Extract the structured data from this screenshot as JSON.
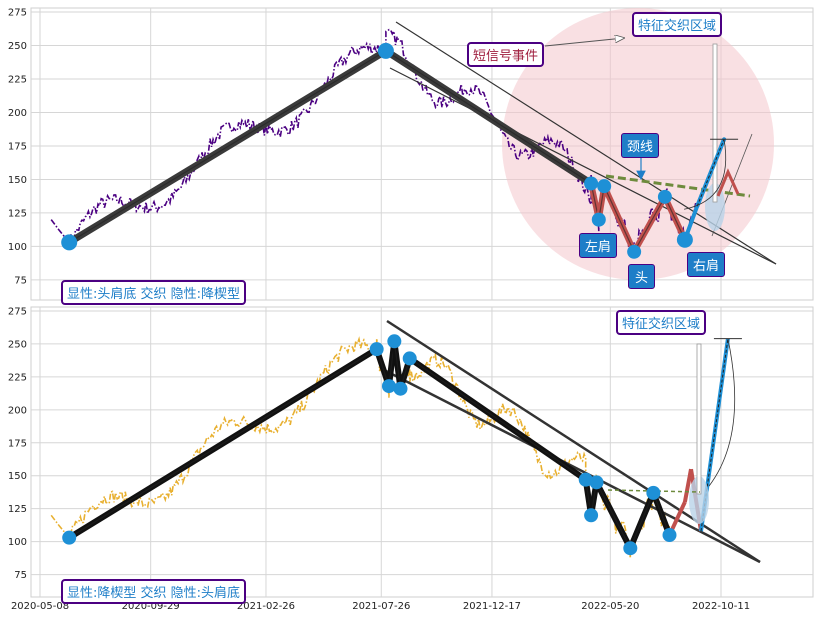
{
  "colors": {
    "price_top": "#4b0082",
    "price_bottom": "#e8b030",
    "marker": "#1e90d6",
    "trend": "#333333",
    "pattern_red": "#c0504d",
    "neckline": "#6e8b3d",
    "zone": "#f4c6cc",
    "label_border": "#4b0082",
    "label_text": "#1e7ec8",
    "event_text": "#a02040"
  },
  "chart_data": [
    {
      "type": "line",
      "panel": "top",
      "x_ticks": [
        "2020-05-08",
        "2020-09-29",
        "2021-02-26",
        "2021-07-26",
        "2021-12-17",
        "2022-05-20",
        "2022-10-11"
      ],
      "y_ticks": [
        75,
        100,
        125,
        150,
        175,
        200,
        225,
        250,
        275
      ],
      "ylim": [
        60,
        278
      ],
      "grid": true,
      "zigzag": [
        {
          "x": "2020-06-15",
          "y": 103
        },
        {
          "x": "2021-08-01",
          "y": 246
        },
        {
          "x": "2022-04-25",
          "y": 147
        },
        {
          "x": "2022-05-05",
          "y": 120
        },
        {
          "x": "2022-05-12",
          "y": 145
        },
        {
          "x": "2022-06-20",
          "y": 96
        },
        {
          "x": "2022-07-30",
          "y": 137
        },
        {
          "x": "2022-08-25",
          "y": 105
        },
        {
          "x": "2022-09-10",
          "y": 130
        },
        {
          "x": "2022-10-15",
          "y": 180
        }
      ],
      "annotations": {
        "left_shoulder": "左肩",
        "head": "头",
        "right_shoulder": "右肩",
        "neckline": "颈线",
        "short_signal": "短信号事件",
        "feature_zone": "特征交织区域"
      },
      "legend": "显性:头肩底 交织 隐性:降楔型"
    },
    {
      "type": "line",
      "panel": "bottom",
      "x_ticks": [
        "2020-05-08",
        "2020-09-29",
        "2021-02-26",
        "2021-07-26",
        "2021-12-17",
        "2022-05-20",
        "2022-10-11"
      ],
      "y_ticks": [
        75,
        100,
        125,
        150,
        175,
        200,
        225,
        250,
        275
      ],
      "ylim": [
        58,
        278
      ],
      "grid": true,
      "zigzag": [
        {
          "x": "2020-06-15",
          "y": 103
        },
        {
          "x": "2021-07-20",
          "y": 246
        },
        {
          "x": "2021-08-05",
          "y": 218
        },
        {
          "x": "2021-08-12",
          "y": 252
        },
        {
          "x": "2021-08-20",
          "y": 216
        },
        {
          "x": "2021-09-01",
          "y": 239
        },
        {
          "x": "2022-04-18",
          "y": 147
        },
        {
          "x": "2022-04-25",
          "y": 120
        },
        {
          "x": "2022-05-02",
          "y": 145
        },
        {
          "x": "2022-06-15",
          "y": 95
        },
        {
          "x": "2022-07-15",
          "y": 137
        },
        {
          "x": "2022-08-05",
          "y": 105
        }
      ],
      "annotations": {
        "feature_zone": "特征交织区域"
      },
      "legend": "显性:降楔型 交织 隐性:头肩底"
    }
  ]
}
